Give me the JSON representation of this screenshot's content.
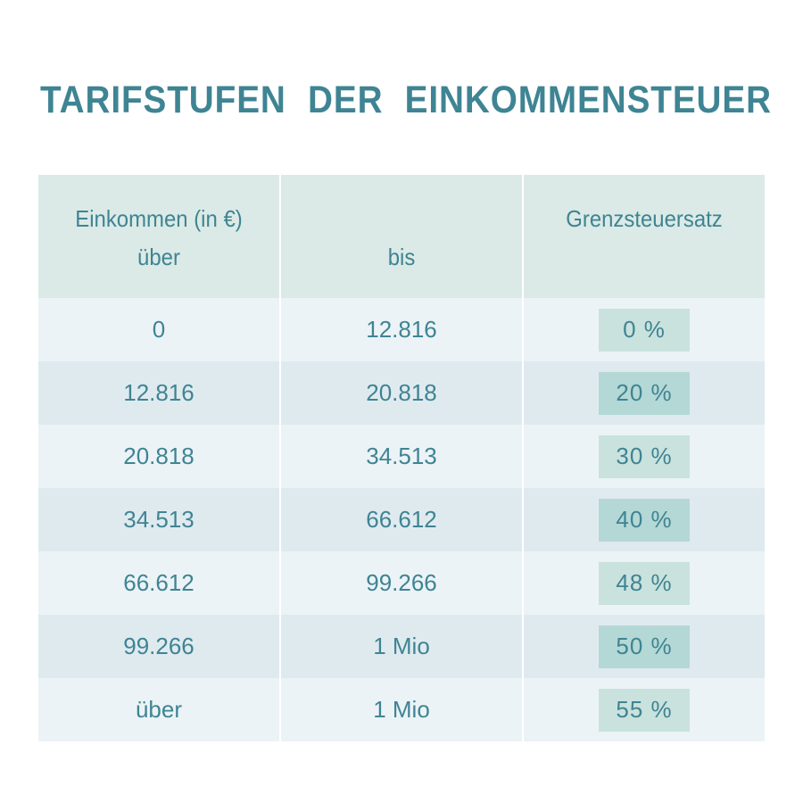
{
  "title": "TARIFSTUFEN DER EINKOMMENSTEUER",
  "colors": {
    "accent_text": "#3f8493",
    "header_bg": "#dbeae6",
    "row_light": "#ebf3f6",
    "row_dark": "#dfeaef",
    "rate_box": "#b4d8d5",
    "rate_box_pale": "#c9e2dd"
  },
  "table": {
    "headers": {
      "col1_line1": "Einkommen (in €)",
      "col1_line2": "über",
      "col2": "bis",
      "col3": "Grenzsteuersatz"
    },
    "rows": [
      {
        "from": "0",
        "to": "12.816",
        "rate": "0 %"
      },
      {
        "from": "12.816",
        "to": "20.818",
        "rate": "20 %"
      },
      {
        "from": "20.818",
        "to": "34.513",
        "rate": "30 %"
      },
      {
        "from": "34.513",
        "to": "66.612",
        "rate": "40 %"
      },
      {
        "from": "66.612",
        "to": "99.266",
        "rate": "48 %"
      },
      {
        "from": "99.266",
        "to": "1 Mio",
        "rate": "50 %"
      },
      {
        "from": "über",
        "to": "1 Mio",
        "rate": "55 %"
      }
    ]
  }
}
